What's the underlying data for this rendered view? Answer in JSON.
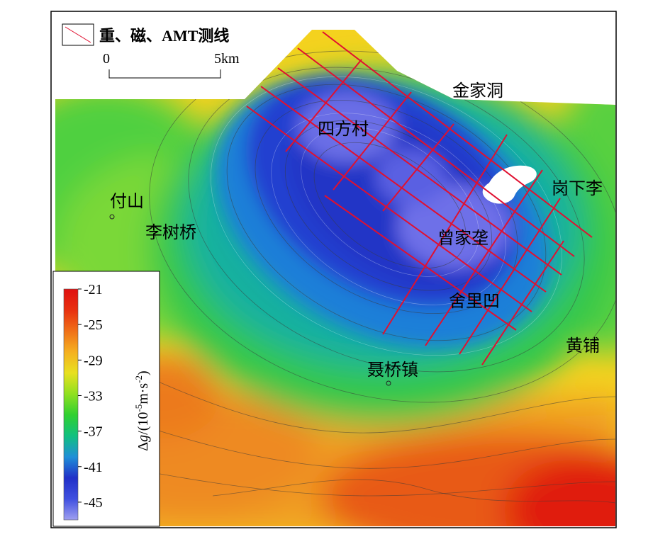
{
  "legend": {
    "line_label": "重、磁、AMT测线",
    "line_color": "#e01030"
  },
  "scale_bar": {
    "start": "0",
    "end": "5km"
  },
  "places": [
    {
      "id": "jinjiadong",
      "name": "金家洞"
    },
    {
      "id": "sifangcun",
      "name": "四方村"
    },
    {
      "id": "gangxiali",
      "name": "岗下李"
    },
    {
      "id": "fushan",
      "name": "付山"
    },
    {
      "id": "lishuqiao",
      "name": "李树桥"
    },
    {
      "id": "zengjiawei",
      "name": "曾家垄"
    },
    {
      "id": "shelilao",
      "name": "舍里凹"
    },
    {
      "id": "huangpu",
      "name": "黄铺"
    },
    {
      "id": "nieqiaozhen",
      "name": "聂桥镇"
    }
  ],
  "colorbar": {
    "ticks": [
      "-21",
      "-25",
      "-29",
      "-33",
      "-37",
      "-41",
      "-45"
    ],
    "min": -47,
    "max": -21,
    "colors": [
      "#9f9ff0",
      "#4050e0",
      "#2030c8",
      "#1f8fd8",
      "#10c080",
      "#30d030",
      "#90e020",
      "#e8e020",
      "#f5b020",
      "#f07018",
      "#e83010",
      "#e01010"
    ],
    "title_prefix": "Δ",
    "title_var": "g",
    "title_unit": "/(10",
    "title_exp1": "-5",
    "title_mid": "m·s",
    "title_exp2": "-2",
    "title_end": ")"
  }
}
